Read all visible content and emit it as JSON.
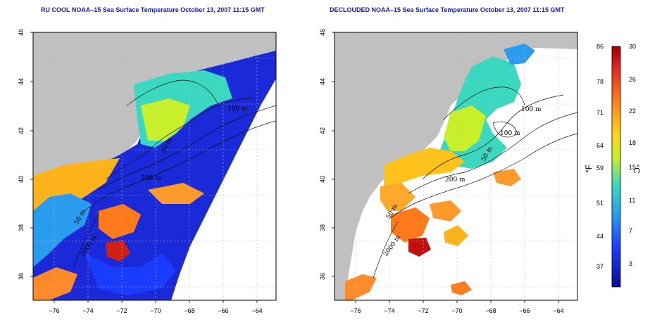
{
  "panels": [
    {
      "id": "left",
      "title": "RU COOL NOAA–15 Sea Surface Temperature October 13, 2007 11:15 GMT",
      "contour_labels": [
        "100 m",
        "50 m",
        "200 m",
        "50 m",
        "2000 m"
      ]
    },
    {
      "id": "right",
      "title": "DECLOUDED NOAA–15 Sea Surface Temperature October 13, 2007 11:15 GMT",
      "contour_labels": [
        "100 m",
        "100 m",
        "50 m",
        "200 m",
        "50 m",
        "2000 m"
      ]
    }
  ],
  "axes": {
    "lat_ticks": [
      "36",
      "38",
      "40",
      "42",
      "44",
      "46"
    ],
    "lon_ticks": [
      "−76",
      "−74",
      "−72",
      "−70",
      "−68",
      "−66",
      "−64"
    ]
  },
  "colorbar": {
    "unit_f": "°F",
    "unit_c": "°C",
    "f_ticks": [
      "86",
      "78",
      "71",
      "64",
      "59",
      "51",
      "44",
      "37"
    ],
    "c_ticks": [
      "30",
      "26",
      "22",
      "18",
      "15",
      "11",
      "7",
      "3"
    ],
    "colors": [
      "#a00000",
      "#e02020",
      "#ff7a1a",
      "#ffd21a",
      "#c8f02a",
      "#3ad8c0",
      "#2a9cf0",
      "#1a3cff",
      "#0a0a9a"
    ]
  },
  "colors": {
    "land": "#c0c0c0",
    "title": "#1a1aa6"
  }
}
